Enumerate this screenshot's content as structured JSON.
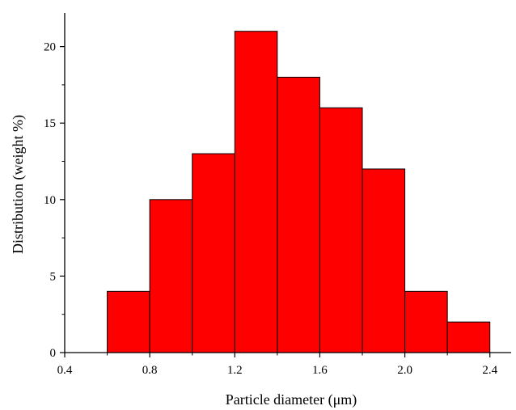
{
  "chart_data": {
    "type": "bar",
    "subtype": "histogram",
    "title": "",
    "xlabel": "Particle diameter (μm)",
    "ylabel": "Distribution (weight %)",
    "bin_edges": [
      0.6,
      0.8,
      1.0,
      1.2,
      1.4,
      1.6,
      1.8,
      2.0,
      2.2,
      2.4
    ],
    "values": [
      4,
      10,
      13,
      21,
      18,
      16,
      12,
      4,
      2
    ],
    "xlim": [
      0.4,
      2.5
    ],
    "ylim": [
      0,
      22.2
    ],
    "xticks": [
      0.4,
      0.8,
      1.2,
      1.6,
      2.0,
      2.4
    ],
    "xtick_labels": [
      "0.4",
      "0.8",
      "1.2",
      "1.6",
      "2.0",
      "2.4"
    ],
    "yticks": [
      0,
      5,
      10,
      15,
      20
    ],
    "ytick_labels": [
      "0",
      "5",
      "10",
      "15",
      "20"
    ],
    "bar_color": "#ff0000",
    "edge_color": "#000000",
    "grid": false
  }
}
